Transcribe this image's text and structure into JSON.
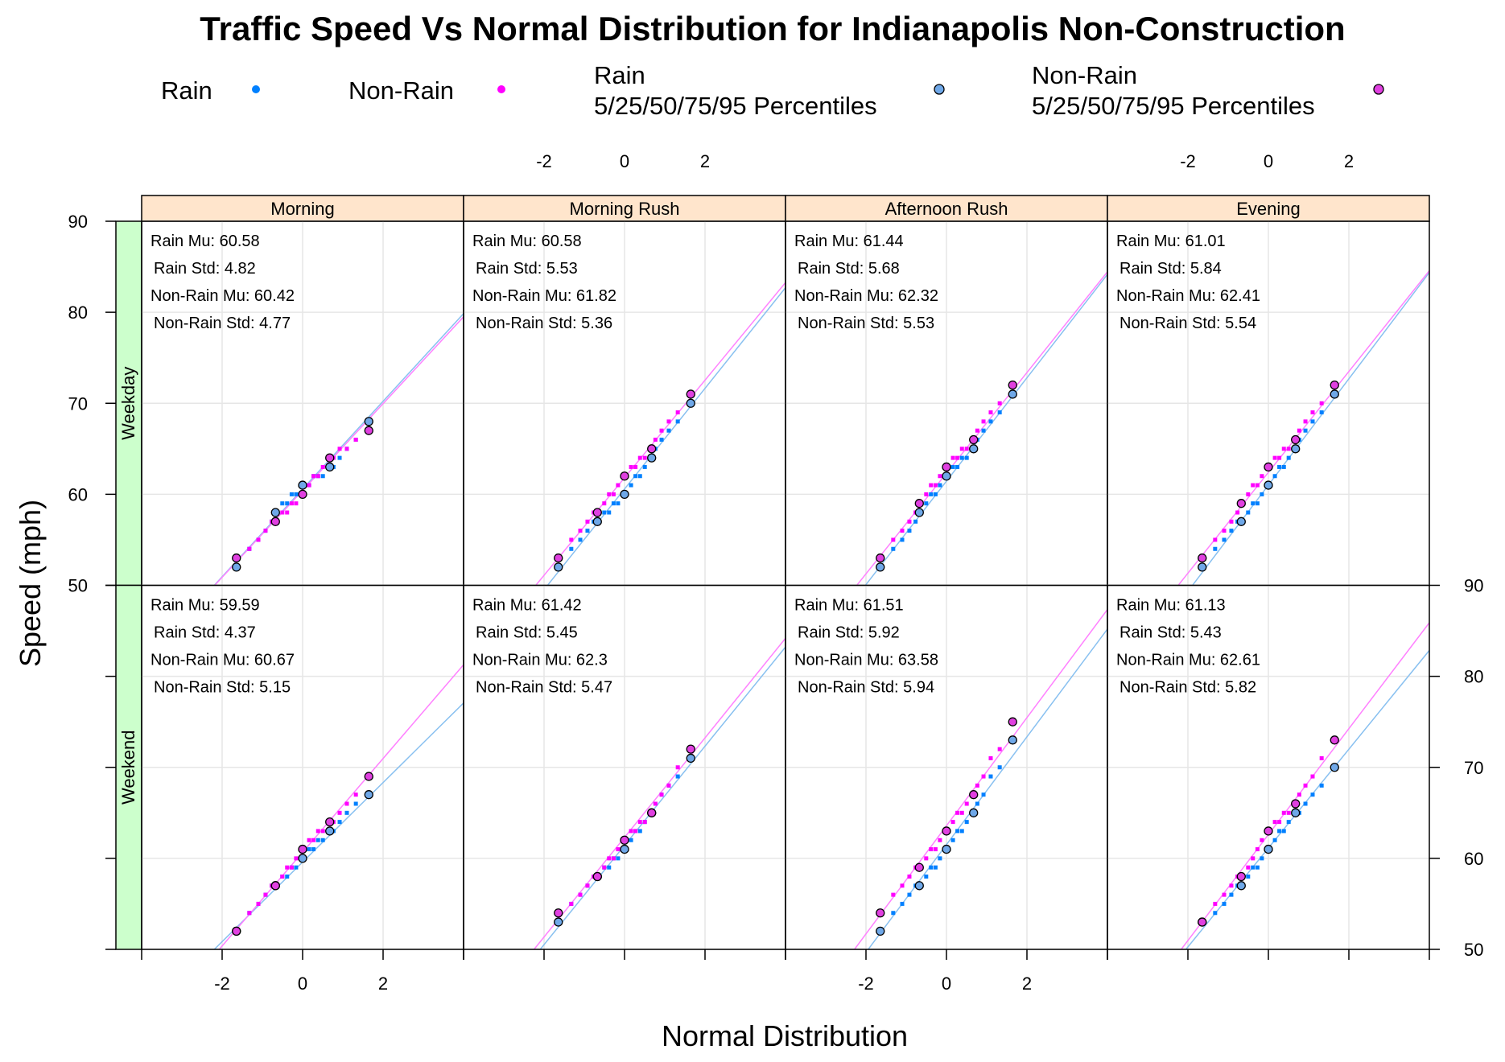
{
  "colors": {
    "rain": "#0080ff",
    "non_rain": "#ff00ff",
    "rain_line": "#88c0f0",
    "non_rain_line": "#ff80ff",
    "rain_percentile_fill": "#6fa8e8",
    "non_rain_percentile_fill": "#e040e0",
    "strip_column": "#ffe5cc",
    "strip_row": "#ccffcc",
    "grid": "#e6e6e6"
  },
  "chart_data": {
    "type": "scatter",
    "title": "Traffic Speed Vs Normal Distribution for Indianapolis Non-Construction",
    "xlabel": "Normal Distribution",
    "ylabel": "Speed (mph)",
    "xlim": [
      -4,
      4
    ],
    "ylim": [
      50,
      90
    ],
    "x_ticks": [
      -2,
      0,
      2
    ],
    "y_ticks": [
      50,
      60,
      70,
      80,
      90
    ],
    "grid": true,
    "legend_position": "top",
    "legend": [
      {
        "label": "Rain",
        "series": "rain"
      },
      {
        "label": "Non-Rain",
        "series": "non_rain"
      },
      {
        "label_lines": [
          "Rain",
          "5/25/50/75/95 Percentiles"
        ],
        "series": "rain_percentiles"
      },
      {
        "label_lines": [
          "Non-Rain",
          "5/25/50/75/95 Percentiles"
        ],
        "series": "non_rain_percentiles"
      }
    ],
    "columns": [
      "Morning",
      "Morning Rush",
      "Afternoon Rush",
      "Evening"
    ],
    "rows": [
      "Weekday",
      "Weekend"
    ],
    "percentile_z": [
      -1.645,
      -0.674,
      0,
      0.674,
      1.645
    ],
    "panels": [
      {
        "row": "Weekday",
        "column": "Morning",
        "stats": [
          "Rain Mu: 60.58",
          "Rain Std: 4.82",
          "Non-Rain Mu: 60.42",
          "Non-Rain Std: 4.77"
        ],
        "rain_fit": {
          "mu": 60.58,
          "sd": 4.82
        },
        "non_rain_fit": {
          "mu": 60.42,
          "sd": 4.77
        },
        "rain_percentiles": [
          52,
          58,
          61,
          63,
          68
        ],
        "non_rain_percentiles": [
          53,
          57,
          60,
          64,
          67
        ]
      },
      {
        "row": "Weekday",
        "column": "Morning Rush",
        "stats": [
          "Rain Mu: 60.58",
          "Rain Std: 5.53",
          "Non-Rain Mu: 61.82",
          "Non-Rain Std: 5.36"
        ],
        "rain_fit": {
          "mu": 60.58,
          "sd": 5.53
        },
        "non_rain_fit": {
          "mu": 61.82,
          "sd": 5.36
        },
        "rain_percentiles": [
          52,
          57,
          60,
          64,
          70
        ],
        "non_rain_percentiles": [
          53,
          58,
          62,
          65,
          71
        ]
      },
      {
        "row": "Weekday",
        "column": "Afternoon Rush",
        "stats": [
          "Rain Mu: 61.44",
          "Rain Std: 5.68",
          "Non-Rain Mu: 62.32",
          "Non-Rain Std: 5.53"
        ],
        "rain_fit": {
          "mu": 61.44,
          "sd": 5.68
        },
        "non_rain_fit": {
          "mu": 62.32,
          "sd": 5.53
        },
        "rain_percentiles": [
          52,
          58,
          62,
          65,
          71
        ],
        "non_rain_percentiles": [
          53,
          59,
          63,
          66,
          72
        ]
      },
      {
        "row": "Weekday",
        "column": "Evening",
        "stats": [
          "Rain Mu: 61.01",
          "Rain Std: 5.84",
          "Non-Rain Mu: 62.41",
          "Non-Rain Std: 5.54"
        ],
        "rain_fit": {
          "mu": 61.01,
          "sd": 5.84
        },
        "non_rain_fit": {
          "mu": 62.41,
          "sd": 5.54
        },
        "rain_percentiles": [
          52,
          57,
          61,
          65,
          71
        ],
        "non_rain_percentiles": [
          53,
          59,
          63,
          66,
          72
        ]
      },
      {
        "row": "Weekend",
        "column": "Morning",
        "stats": [
          "Rain Mu: 59.59",
          "Rain Std: 4.37",
          "Non-Rain Mu: 60.67",
          "Non-Rain Std: 5.15"
        ],
        "rain_fit": {
          "mu": 59.59,
          "sd": 4.37
        },
        "non_rain_fit": {
          "mu": 60.67,
          "sd": 5.15
        },
        "rain_percentiles": [
          52,
          57,
          60,
          63,
          67
        ],
        "non_rain_percentiles": [
          52,
          57,
          61,
          64,
          69
        ]
      },
      {
        "row": "Weekend",
        "column": "Morning Rush",
        "stats": [
          "Rain Mu: 61.42",
          "Rain Std: 5.45",
          "Non-Rain Mu: 62.3",
          "Non-Rain Std: 5.47"
        ],
        "rain_fit": {
          "mu": 61.42,
          "sd": 5.45
        },
        "non_rain_fit": {
          "mu": 62.3,
          "sd": 5.47
        },
        "rain_percentiles": [
          53,
          58,
          61,
          65,
          71
        ],
        "non_rain_percentiles": [
          54,
          58,
          62,
          65,
          72
        ]
      },
      {
        "row": "Weekend",
        "column": "Afternoon Rush",
        "stats": [
          "Rain Mu: 61.51",
          "Rain Std: 5.92",
          "Non-Rain Mu: 63.58",
          "Non-Rain Std: 5.94"
        ],
        "rain_fit": {
          "mu": 61.51,
          "sd": 5.92
        },
        "non_rain_fit": {
          "mu": 63.58,
          "sd": 5.94
        },
        "rain_percentiles": [
          52,
          57,
          61,
          65,
          73
        ],
        "non_rain_percentiles": [
          54,
          59,
          63,
          67,
          75
        ]
      },
      {
        "row": "Weekend",
        "column": "Evening",
        "stats": [
          "Rain Mu: 61.13",
          "Rain Std: 5.43",
          "Non-Rain Mu: 62.61",
          "Non-Rain Std: 5.82"
        ],
        "rain_fit": {
          "mu": 61.13,
          "sd": 5.43
        },
        "non_rain_fit": {
          "mu": 62.61,
          "sd": 5.82
        },
        "rain_percentiles": [
          53,
          57,
          61,
          65,
          70
        ],
        "non_rain_percentiles": [
          53,
          58,
          63,
          66,
          73
        ]
      }
    ]
  }
}
